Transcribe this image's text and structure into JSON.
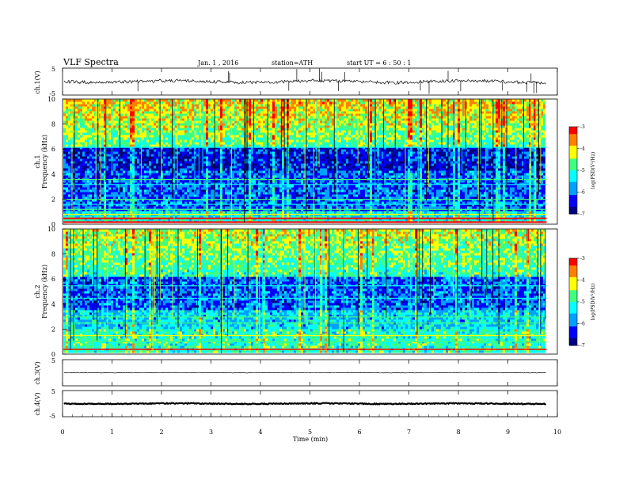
{
  "header": {
    "title": "VLF  Spectra",
    "date": "Jan.  1  , 2016",
    "station": "station=ATH",
    "start": "start  UT  =   6  : 50 : 1"
  },
  "chart_data": [
    {
      "type": "line",
      "ylabel": "ch.1(V)",
      "ylim": [
        -5,
        5
      ],
      "yticks": [
        5,
        -5
      ],
      "description_values": {
        "baseline": 0.0
      }
    },
    {
      "type": "heatmap",
      "ylabel": "ch.1\nFrequency  (kHz)",
      "ylabel_lines": [
        "ch.1",
        "Frequency  (kHz)"
      ],
      "ylim": [
        0,
        10
      ],
      "yticks": [
        0,
        2,
        4,
        6,
        8,
        10
      ],
      "colorbar": {
        "label": "log(PSD(V²/Hz)",
        "range": [
          -7,
          -3
        ],
        "ticks": [
          -3,
          -4,
          -5,
          -6,
          -7
        ]
      }
    },
    {
      "type": "heatmap",
      "ylabel_lines": [
        "ch.2",
        "Frequency  (kHz)"
      ],
      "ylim": [
        0,
        10
      ],
      "yticks": [
        0,
        2,
        4,
        6,
        8,
        10
      ],
      "colorbar": {
        "label": "log(PSD(V²/Hz)",
        "range": [
          -7,
          -3
        ],
        "ticks": [
          -3,
          -4,
          -5,
          -6,
          -7
        ]
      }
    },
    {
      "type": "line",
      "ylabel": "ch.3(V)",
      "ylim": [
        -5,
        5
      ],
      "yticks": [
        5
      ]
    },
    {
      "type": "line",
      "ylabel": "ch.4(V)",
      "ylim": [
        -5,
        5
      ],
      "yticks": [
        5,
        -5
      ]
    }
  ],
  "xaxis": {
    "label": "Time  (min)",
    "xlim": [
      0,
      10
    ],
    "ticks": [
      0,
      1,
      2,
      3,
      4,
      5,
      6,
      7,
      8,
      9,
      10
    ],
    "data_end": 9.8
  },
  "colors": {
    "jet": [
      "#000080",
      "#0000ff",
      "#00a0ff",
      "#00ffff",
      "#40ff80",
      "#ffff00",
      "#ff8000",
      "#ff0000",
      "#ffc0c0"
    ]
  }
}
